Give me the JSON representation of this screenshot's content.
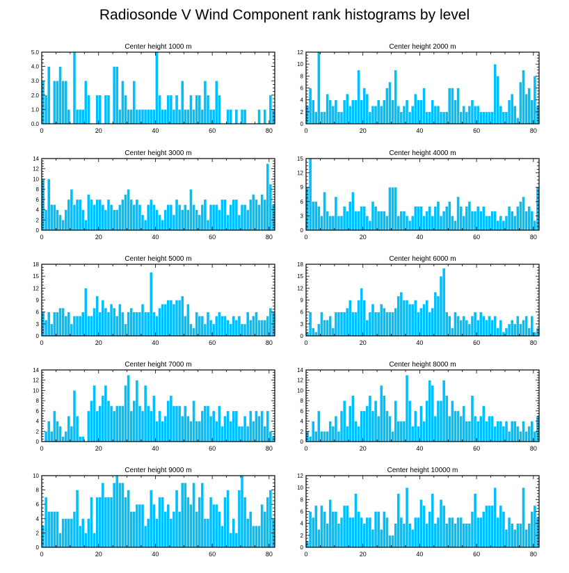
{
  "title": "Radiosonde V Wind Component rank histograms by level",
  "colors": {
    "bar": "#00BFFF",
    "frame": "#000000",
    "background": "#FFFFFF"
  },
  "chart_data": [
    {
      "type": "bar",
      "title": "Center height 1000 m",
      "xlim": [
        0,
        82
      ],
      "ylim": [
        0,
        5
      ],
      "xticks": [
        "0",
        "20",
        "40",
        "60",
        "80"
      ],
      "xtick_values": [
        0,
        20,
        40,
        60,
        80
      ],
      "yticks": [
        "0.0",
        "1.0",
        "2.0",
        "3.0",
        "4.0",
        "5.0"
      ],
      "ytick_values": [
        0,
        1,
        2,
        3,
        4,
        5
      ],
      "values": [
        3,
        2,
        4,
        0,
        3,
        3,
        4,
        3,
        3,
        1,
        0,
        5,
        1,
        1,
        1,
        3,
        2,
        0,
        0,
        2,
        2,
        0,
        2,
        2,
        0,
        4,
        4,
        1,
        3,
        2,
        1,
        1,
        3,
        1,
        1,
        1,
        1,
        1,
        1,
        1,
        5,
        2,
        1,
        1,
        2,
        2,
        1,
        2,
        1,
        3,
        1,
        1,
        2,
        1,
        2,
        2,
        1,
        3,
        2,
        1,
        1,
        3,
        2,
        0,
        0,
        1,
        1,
        0,
        1,
        0,
        1,
        1,
        0,
        0,
        0,
        0,
        1,
        0,
        1,
        0,
        2,
        1
      ]
    },
    {
      "type": "bar",
      "title": "Center height 2000 m",
      "xlim": [
        0,
        82
      ],
      "ylim": [
        0,
        12
      ],
      "xticks": [
        "0",
        "20",
        "40",
        "60",
        "80"
      ],
      "xtick_values": [
        0,
        20,
        40,
        60,
        80
      ],
      "yticks": [
        "0",
        "2",
        "4",
        "6",
        "8",
        "10",
        "12"
      ],
      "ytick_values": [
        0,
        2,
        4,
        6,
        8,
        10,
        12
      ],
      "values": [
        3,
        6,
        4,
        2,
        12,
        2,
        2,
        5,
        4,
        3,
        4,
        2,
        2,
        4,
        5,
        3,
        4,
        4,
        9,
        4,
        6,
        5,
        2,
        3,
        3,
        4,
        3,
        4,
        6,
        7,
        4,
        9,
        3,
        2,
        3,
        4,
        2,
        3,
        5,
        4,
        4,
        6,
        2,
        2,
        4,
        3,
        3,
        2,
        2,
        2,
        6,
        6,
        4,
        6,
        2,
        3,
        2,
        3,
        4,
        3,
        3,
        2,
        2,
        2,
        2,
        2,
        10,
        8,
        3,
        2,
        2,
        4,
        5,
        3,
        1,
        7,
        9,
        5,
        6,
        4,
        8,
        3
      ]
    },
    {
      "type": "bar",
      "title": "Center height 3000 m",
      "xlim": [
        0,
        82
      ],
      "ylim": [
        0,
        14
      ],
      "xticks": [
        "0",
        "20",
        "40",
        "60",
        "80"
      ],
      "xtick_values": [
        0,
        20,
        40,
        60,
        80
      ],
      "yticks": [
        "0",
        "2",
        "4",
        "6",
        "8",
        "10",
        "12",
        "14"
      ],
      "ytick_values": [
        0,
        2,
        4,
        6,
        8,
        10,
        12,
        14
      ],
      "values": [
        10,
        4,
        10,
        5,
        5,
        4,
        3,
        2,
        4,
        6,
        8,
        5,
        6,
        6,
        4,
        2,
        7,
        6,
        5,
        6,
        6,
        5,
        4,
        6,
        5,
        4,
        4,
        5,
        6,
        7,
        8,
        6,
        5,
        6,
        5,
        3,
        2,
        5,
        6,
        5,
        4,
        3,
        2,
        4,
        5,
        5,
        3,
        6,
        5,
        4,
        5,
        4,
        8,
        5,
        4,
        3,
        5,
        6,
        2,
        5,
        5,
        5,
        4,
        6,
        6,
        3,
        5,
        6,
        6,
        3,
        5,
        5,
        4,
        6,
        7,
        6,
        5,
        7,
        6,
        13,
        9,
        5
      ]
    },
    {
      "type": "bar",
      "title": "Center height 4000 m",
      "xlim": [
        0,
        82
      ],
      "ylim": [
        0,
        15
      ],
      "xticks": [
        "0",
        "20",
        "40",
        "60",
        "80"
      ],
      "xtick_values": [
        0,
        20,
        40,
        60,
        80
      ],
      "yticks": [
        "0",
        "3",
        "6",
        "9",
        "12",
        "15"
      ],
      "ytick_values": [
        0,
        3,
        6,
        9,
        12,
        15
      ],
      "values": [
        9,
        15,
        6,
        6,
        5,
        3,
        8,
        4,
        3,
        3,
        7,
        3,
        3,
        5,
        4,
        6,
        8,
        4,
        4,
        5,
        5,
        3,
        2,
        6,
        5,
        4,
        4,
        4,
        3,
        9,
        9,
        9,
        3,
        4,
        4,
        3,
        2,
        3,
        5,
        5,
        5,
        3,
        4,
        5,
        3,
        5,
        6,
        3,
        4,
        5,
        6,
        3,
        2,
        7,
        5,
        3,
        5,
        6,
        4,
        4,
        5,
        4,
        5,
        3,
        3,
        4,
        4,
        2,
        3,
        2,
        3,
        5,
        4,
        3,
        5,
        6,
        7,
        4,
        5,
        4,
        2,
        9
      ]
    },
    {
      "type": "bar",
      "title": "Center height 5000 m",
      "xlim": [
        0,
        82
      ],
      "ylim": [
        0,
        18
      ],
      "xticks": [
        "0",
        "20",
        "40",
        "60",
        "80"
      ],
      "xtick_values": [
        0,
        20,
        40,
        60,
        80
      ],
      "yticks": [
        "0",
        "3",
        "6",
        "9",
        "12",
        "15",
        "18"
      ],
      "ytick_values": [
        0,
        3,
        6,
        9,
        12,
        15,
        18
      ],
      "values": [
        6,
        4,
        6,
        3,
        6,
        6,
        7,
        7,
        5,
        6,
        3,
        5,
        5,
        5,
        6,
        12,
        5,
        5,
        7,
        10,
        6,
        9,
        7,
        6,
        8,
        7,
        5,
        8,
        6,
        3,
        6,
        7,
        6,
        6,
        6,
        8,
        6,
        6,
        16,
        6,
        5,
        7,
        8,
        8,
        9,
        9,
        8,
        9,
        9,
        10,
        5,
        8,
        3,
        2,
        6,
        5,
        5,
        3,
        6,
        4,
        3,
        5,
        6,
        5,
        5,
        4,
        3,
        5,
        4,
        5,
        3,
        3,
        6,
        4,
        5,
        6,
        4,
        4,
        4,
        5,
        7,
        6
      ]
    },
    {
      "type": "bar",
      "title": "Center height 6000 m",
      "xlim": [
        0,
        82
      ],
      "ylim": [
        0,
        18
      ],
      "xticks": [
        "0",
        "20",
        "40",
        "60",
        "80"
      ],
      "xtick_values": [
        0,
        20,
        40,
        60,
        80
      ],
      "yticks": [
        "0",
        "3",
        "6",
        "9",
        "12",
        "15",
        "18"
      ],
      "ytick_values": [
        0,
        3,
        6,
        9,
        12,
        15,
        18
      ],
      "values": [
        1,
        6,
        2,
        1,
        3,
        6,
        4,
        4,
        5,
        2,
        6,
        6,
        6,
        6,
        7,
        9,
        6,
        6,
        9,
        12,
        9,
        4,
        6,
        8,
        6,
        6,
        8,
        7,
        6,
        6,
        6,
        7,
        10,
        11,
        9,
        9,
        8,
        8,
        9,
        6,
        7,
        8,
        9,
        6,
        7,
        11,
        10,
        15,
        17,
        6,
        5,
        2,
        6,
        5,
        4,
        5,
        4,
        3,
        5,
        6,
        4,
        6,
        5,
        4,
        5,
        4,
        5,
        2,
        4,
        1,
        2,
        3,
        4,
        3,
        5,
        3,
        4,
        5,
        2,
        5,
        1,
        2
      ]
    },
    {
      "type": "bar",
      "title": "Center height 7000 m",
      "xlim": [
        0,
        82
      ],
      "ylim": [
        0,
        14
      ],
      "xticks": [
        "0",
        "20",
        "40",
        "60",
        "80"
      ],
      "xtick_values": [
        0,
        20,
        40,
        60,
        80
      ],
      "yticks": [
        "0",
        "2",
        "4",
        "6",
        "8",
        "10",
        "12",
        "14"
      ],
      "ytick_values": [
        0,
        2,
        4,
        6,
        8,
        10,
        12,
        14
      ],
      "values": [
        0,
        2,
        4,
        2,
        6,
        4,
        3,
        1,
        2,
        5,
        3,
        10,
        5,
        1,
        1,
        0,
        6,
        8,
        11,
        6,
        7,
        9,
        11,
        8,
        7,
        6,
        7,
        7,
        7,
        11,
        13,
        6,
        8,
        12,
        7,
        6,
        11,
        7,
        6,
        9,
        4,
        6,
        4,
        5,
        8,
        9,
        7,
        7,
        7,
        5,
        7,
        5,
        4,
        8,
        4,
        4,
        6,
        7,
        7,
        5,
        6,
        4,
        7,
        3,
        5,
        6,
        4,
        6,
        6,
        3,
        3,
        5,
        3,
        6,
        4,
        6,
        5,
        6,
        3,
        6,
        2,
        1
      ]
    },
    {
      "type": "bar",
      "title": "Center height 8000 m",
      "xlim": [
        0,
        82
      ],
      "ylim": [
        0,
        14
      ],
      "xticks": [
        "0",
        "20",
        "40",
        "60",
        "80"
      ],
      "xtick_values": [
        0,
        20,
        40,
        60,
        80
      ],
      "yticks": [
        "0",
        "2",
        "4",
        "6",
        "8",
        "10",
        "12",
        "14"
      ],
      "ytick_values": [
        0,
        2,
        4,
        6,
        8,
        10,
        12,
        14
      ],
      "values": [
        2,
        1,
        4,
        2,
        6,
        2,
        2,
        2,
        4,
        3,
        5,
        2,
        6,
        8,
        3,
        7,
        9,
        4,
        3,
        6,
        6,
        7,
        9,
        6,
        8,
        5,
        11,
        9,
        6,
        5,
        2,
        8,
        4,
        4,
        4,
        13,
        8,
        3,
        6,
        3,
        7,
        4,
        8,
        12,
        11,
        5,
        8,
        8,
        12,
        9,
        5,
        8,
        6,
        6,
        5,
        7,
        4,
        4,
        9,
        5,
        4,
        5,
        7,
        4,
        5,
        5,
        3,
        4,
        4,
        3,
        4,
        2,
        4,
        4,
        3,
        2,
        4,
        2,
        3,
        4,
        2,
        5
      ]
    },
    {
      "type": "bar",
      "title": "Center height 9000 m",
      "xlim": [
        0,
        82
      ],
      "ylim": [
        0,
        10
      ],
      "xticks": [
        "0",
        "20",
        "40",
        "60",
        "80"
      ],
      "xtick_values": [
        0,
        20,
        40,
        60,
        80
      ],
      "yticks": [
        "0",
        "2",
        "4",
        "6",
        "8",
        "10"
      ],
      "ytick_values": [
        0,
        2,
        4,
        6,
        8,
        10
      ],
      "values": [
        3,
        7,
        5,
        5,
        5,
        5,
        2,
        4,
        4,
        4,
        4,
        5,
        8,
        3,
        4,
        2,
        4,
        7,
        2,
        7,
        7,
        9,
        7,
        7,
        7,
        9,
        10,
        9,
        9,
        7,
        8,
        5,
        5,
        6,
        6,
        6,
        3,
        4,
        8,
        6,
        4,
        7,
        7,
        5,
        6,
        4,
        5,
        8,
        5,
        9,
        9,
        7,
        6,
        9,
        5,
        7,
        9,
        4,
        4,
        7,
        6,
        6,
        5,
        3,
        7,
        8,
        2,
        4,
        2,
        8,
        10,
        7,
        4,
        5,
        3,
        3,
        3,
        6,
        5,
        7,
        8,
        4
      ]
    },
    {
      "type": "bar",
      "title": "Center height 10000 m",
      "xlim": [
        0,
        82
      ],
      "ylim": [
        0,
        12
      ],
      "xticks": [
        "0",
        "20",
        "40",
        "60",
        "80"
      ],
      "xtick_values": [
        0,
        20,
        40,
        60,
        80
      ],
      "yticks": [
        "0",
        "2",
        "4",
        "6",
        "8",
        "10",
        "12"
      ],
      "ytick_values": [
        0,
        2,
        4,
        6,
        8,
        10,
        12
      ],
      "values": [
        1,
        6,
        5,
        7,
        3,
        7,
        6,
        4,
        8,
        6,
        6,
        4,
        5,
        7,
        7,
        5,
        5,
        9,
        6,
        5,
        4,
        5,
        5,
        3,
        6,
        6,
        3,
        6,
        5,
        2,
        2,
        4,
        9,
        5,
        4,
        10,
        4,
        3,
        5,
        5,
        8,
        7,
        4,
        6,
        9,
        4,
        5,
        8,
        7,
        4,
        5,
        5,
        4,
        5,
        5,
        4,
        4,
        4,
        6,
        9,
        5,
        5,
        6,
        7,
        7,
        7,
        10,
        5,
        7,
        6,
        3,
        5,
        4,
        3,
        4,
        4,
        10,
        3,
        4,
        6,
        7,
        5
      ]
    }
  ]
}
